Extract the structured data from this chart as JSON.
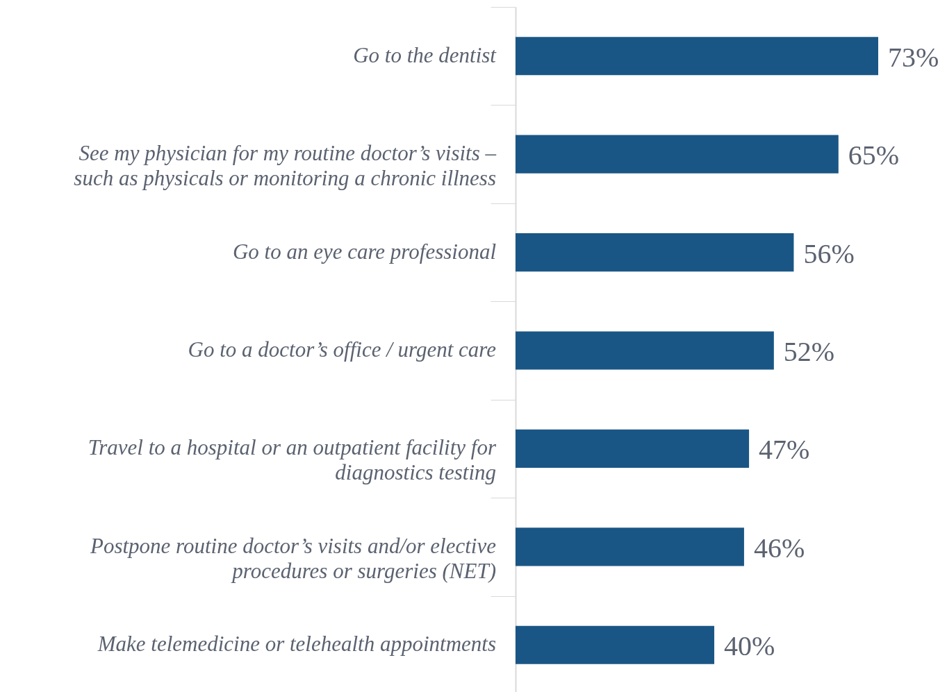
{
  "chart_data": {
    "type": "bar",
    "orientation": "horizontal",
    "categories": [
      "Go to the dentist",
      "See my physician for my routine doctor’s visits –\nsuch as physicals or monitoring a chronic illness",
      "Go to an eye care professional",
      "Go to a doctor’s office / urgent care",
      "Travel to a hospital or an outpatient facility for\ndiagnostics testing",
      "Postpone routine doctor’s visits and/or elective\nprocedures or surgeries (NET)",
      "Make telemedicine or telehealth appointments"
    ],
    "values": [
      73,
      65,
      56,
      52,
      47,
      46,
      40
    ],
    "value_labels": [
      "73%",
      "65%",
      "56%",
      "52%",
      "47%",
      "46%",
      "40%"
    ],
    "color": "#1a5685"
  }
}
